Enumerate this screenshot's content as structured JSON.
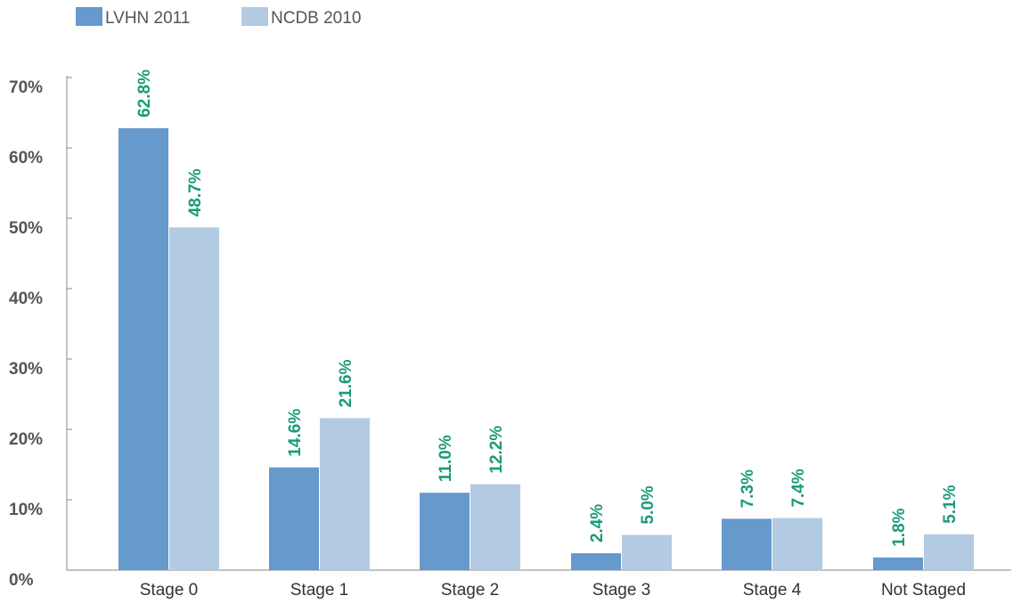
{
  "chart_data": {
    "type": "bar",
    "categories": [
      "Stage 0",
      "Stage 1",
      "Stage 2",
      "Stage 3",
      "Stage 4",
      "Not Staged"
    ],
    "series": [
      {
        "name": "LVHN 2011",
        "color": "#6699cc",
        "values": [
          62.8,
          14.6,
          11.0,
          2.4,
          7.3,
          1.8
        ],
        "labels": [
          "62.8%",
          "14.6%",
          "11.0%",
          "2.4%",
          "7.3%",
          "1.8%"
        ]
      },
      {
        "name": "NCDB 2010",
        "color": "#b3cae3",
        "values": [
          48.7,
          21.6,
          12.2,
          5.0,
          7.4,
          5.1
        ],
        "labels": [
          "48.7%",
          "21.6%",
          "12.2%",
          "5.0%",
          "7.4%",
          "5.1%"
        ]
      }
    ],
    "y_ticks": [
      "0%",
      "10%",
      "20%",
      "30%",
      "40%",
      "50%",
      "60%",
      "70%"
    ],
    "ylim": [
      0,
      70
    ],
    "legend_position": "top-left",
    "grid": false,
    "data_label_color": "#1a9a7a",
    "axis_color": "#888888"
  }
}
